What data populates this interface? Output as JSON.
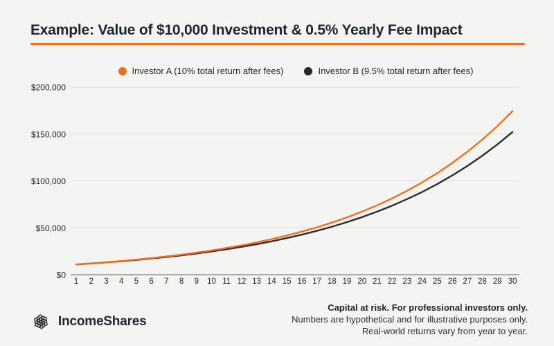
{
  "page": {
    "title": "Example: Value of $10,000 Investment & 0.5% Yearly Fee Impact",
    "background_color": "#f4f4f2",
    "accent_color": "#f36f1c"
  },
  "legend": {
    "items": [
      {
        "label": "Investor A (10% total return after fees)",
        "color": "#f36f1c"
      },
      {
        "label": "Investor B (9.5% total return after fees)",
        "color": "#26292d"
      }
    ]
  },
  "chart_data": {
    "type": "line",
    "title": "Example: Value of $10,000 Investment & 0.5% Yearly Fee Impact",
    "xlabel": "",
    "ylabel": "",
    "x": [
      1,
      2,
      3,
      4,
      5,
      6,
      7,
      8,
      9,
      10,
      11,
      12,
      13,
      14,
      15,
      16,
      17,
      18,
      19,
      20,
      21,
      22,
      23,
      24,
      25,
      26,
      27,
      28,
      29,
      30
    ],
    "xlim": [
      1,
      30
    ],
    "ylim": [
      0,
      200000
    ],
    "grid": true,
    "legend_position": "top-center",
    "y_ticks": [
      {
        "value": 0,
        "label": "$0"
      },
      {
        "value": 50000,
        "label": "$50,000"
      },
      {
        "value": 100000,
        "label": "$100,000"
      },
      {
        "value": 150000,
        "label": "$150,000"
      },
      {
        "value": 200000,
        "label": "$200,000"
      }
    ],
    "series": [
      {
        "name": "Investor A (10% total return after fees)",
        "color": "#f36f1c",
        "values": [
          11000,
          12100,
          13310,
          14641,
          16105,
          17716,
          19487,
          21436,
          23579,
          25937,
          28531,
          31384,
          34523,
          37975,
          41772,
          45950,
          50545,
          55599,
          61159,
          67275,
          74002,
          81403,
          89543,
          98497,
          108347,
          119182,
          131100,
          144210,
          158631,
          174494
        ]
      },
      {
        "name": "Investor B (9.5% total return after fees)",
        "color": "#282c30",
        "values": [
          10950,
          11990,
          13129,
          14377,
          15742,
          17238,
          18876,
          20669,
          22632,
          24782,
          27137,
          29715,
          32537,
          35629,
          39013,
          42719,
          46778,
          51222,
          56088,
          61416,
          67251,
          73639,
          80635,
          88296,
          96684,
          105869,
          115927,
          126939,
          138998,
          152203
        ]
      }
    ],
    "grid_color": "#dddddc",
    "axis_color": "#8f9396"
  },
  "footer": {
    "brand": "IncomeShares",
    "disclaimer_bold": "Capital at risk. For professional investors only.",
    "disclaimer_line2": "Numbers are hypothetical and for illustrative purposes only.",
    "disclaimer_line3": "Real-world returns vary from year to year."
  }
}
